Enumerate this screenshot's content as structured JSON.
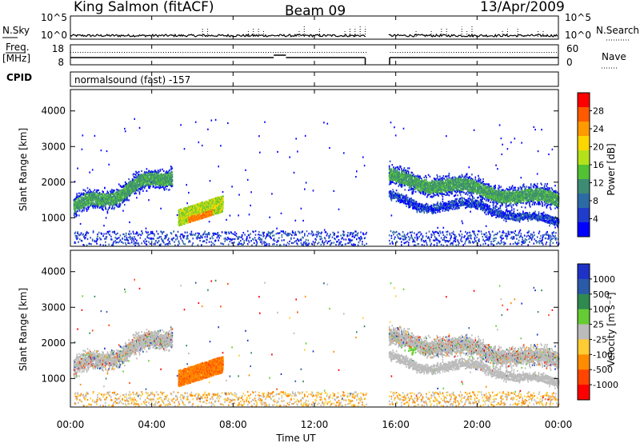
{
  "header": {
    "station": "King Salmon (fitACF)",
    "beam": "Beam 09",
    "date": "13/Apr/2009"
  },
  "strip_panel": {
    "nsky_label": "N.Sky",
    "nsearch_label": "N.Search",
    "nsky_ticks": [
      "10^5",
      "10^0"
    ],
    "nsearch_ticks": [
      "10^5",
      "10^0"
    ],
    "freq_label_1": "Freq.",
    "freq_label_2": "[MHz]",
    "freq_ticks": [
      "18",
      "8"
    ],
    "nave_label": "Nave",
    "nave_ticks": [
      "60",
      "0"
    ],
    "cpid_label": "CPID",
    "mode_text": "normalsound (fast) -157"
  },
  "chart_data": [
    {
      "type": "heatmap",
      "name": "power",
      "ylabel": "Slant Range [km]",
      "xlabel": "",
      "ylim": [
        200,
        4600
      ],
      "xlim_hours": [
        0,
        24
      ],
      "y_ticks": [
        "4000",
        "3000",
        "2000",
        "1000"
      ],
      "colorbar": {
        "label": "Power [dB]",
        "ticks": [
          "28",
          "24",
          "20",
          "16",
          "12",
          "8",
          "4"
        ],
        "colors": [
          "#ff0000",
          "#ff5a00",
          "#ff9a00",
          "#ffd700",
          "#b4e21a",
          "#52c234",
          "#3c8c74",
          "#2d6ba6",
          "#1f3ccc",
          "#0000ff"
        ]
      },
      "features": [
        {
          "desc": "band",
          "start_hour": 0.2,
          "end_hour": 5.0,
          "range_start_km": 1150,
          "range_end_km": 2200
        },
        {
          "desc": "patch",
          "start_hour": 5.3,
          "end_hour": 7.5,
          "range_start_km": 800,
          "range_end_km": 1400
        },
        {
          "desc": "band",
          "start_hour": 15.7,
          "end_hour": 24.0,
          "range_start_km": 1200,
          "range_end_km": 2200
        }
      ]
    },
    {
      "type": "heatmap",
      "name": "velocity",
      "ylabel": "Slant Range [km]",
      "xlabel": "Time UT",
      "ylim": [
        200,
        4600
      ],
      "xlim_hours": [
        0,
        24
      ],
      "x_ticks": [
        "00:00",
        "04:00",
        "08:00",
        "12:00",
        "16:00",
        "20:00",
        "00:00"
      ],
      "y_ticks": [
        "4000",
        "3000",
        "2000",
        "1000"
      ],
      "colorbar": {
        "label": "Velocity [m s⁻¹]",
        "ticks": [
          "1000",
          "500",
          "100",
          "25",
          "-25",
          "-100",
          "-500",
          "-1000"
        ],
        "colors": [
          "#1e32c8",
          "#2a5aa8",
          "#2f8a50",
          "#66cc33",
          "#bbbbbb",
          "#ffcc33",
          "#ff8c00",
          "#ff4500",
          "#ff0000"
        ]
      }
    }
  ]
}
